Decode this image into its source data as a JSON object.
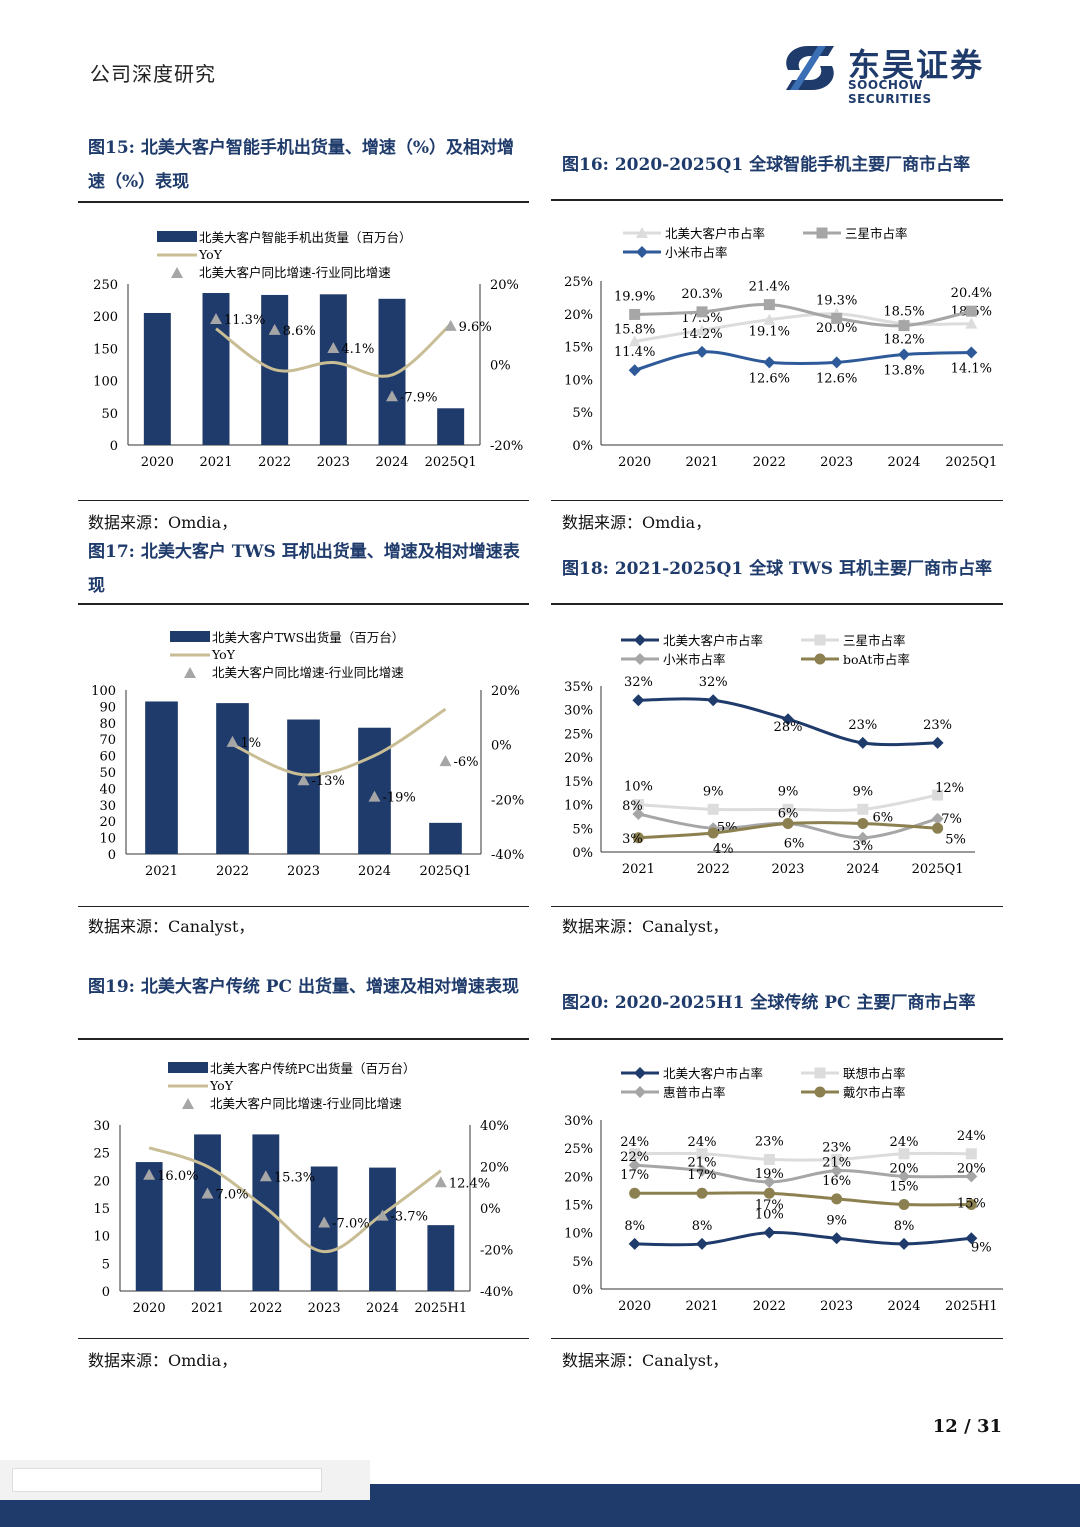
{
  "header": {
    "title": "公司深度研究",
    "logo_cn": "东吴证券",
    "logo_en": "SOOCHOW SECURITIES"
  },
  "page_number": "12  /  31",
  "figures": [
    {
      "title": "图15:  北美大客户智能手机出货量、增速（%）及相对增速（%）表现",
      "source": "数据来源：Omdia，"
    },
    {
      "title": "图16:  2020-2025Q1 全球智能手机主要厂商市占率",
      "source": "数据来源：Omdia，"
    },
    {
      "title": "图17:  北美大客户 TWS 耳机出货量、增速及相对增速表现",
      "source": "数据来源：Canalyst，"
    },
    {
      "title": "图18:  2021-2025Q1 全球 TWS 耳机主要厂商市占率",
      "source": "数据来源：Canalyst，"
    },
    {
      "title": "图19:  北美大客户传统 PC 出货量、增速及相对增速表现",
      "source": "数据来源：Omdia，"
    },
    {
      "title": "图20:  2020-2025H1 全球传统 PC 主要厂商市占率",
      "source": "数据来源：Canalyst，"
    }
  ],
  "chart_data": [
    {
      "type": "bar",
      "categories": [
        "2020",
        "2021",
        "2022",
        "2023",
        "2024",
        "2025Q1"
      ],
      "series": [
        {
          "name": "北美大客户智能手机出货量（百万台）",
          "kind": "bar",
          "axis": "left",
          "values": [
            205,
            236,
            233,
            234,
            227,
            57
          ]
        },
        {
          "name": "YoY",
          "kind": "line",
          "axis": "right",
          "values": [
            null,
            8.9,
            -1.3,
            0.5,
            -2.6,
            10.0
          ]
        },
        {
          "name": "北美大客户同比增速-行业同比增速",
          "kind": "marker",
          "axis": "right",
          "values": [
            null,
            11.3,
            8.6,
            4.1,
            -7.9,
            9.6
          ]
        }
      ],
      "marker_labels": [
        "",
        "11.3%",
        "8.6%",
        "4.1%",
        "-7.9%",
        "9.6%"
      ],
      "yleft": {
        "min": 0,
        "max": 250,
        "ticks": [
          "0",
          "50",
          "100",
          "150",
          "200",
          "250"
        ]
      },
      "yright": {
        "min": -20,
        "max": 20,
        "ticks": [
          "-20%",
          "0%",
          "20%"
        ]
      }
    },
    {
      "type": "line",
      "categories": [
        "2020",
        "2021",
        "2022",
        "2023",
        "2024",
        "2025Q1"
      ],
      "series": [
        {
          "name": "北美大客户市占率",
          "color": "#dcdcdc",
          "marker": "triangle",
          "values": [
            15.8,
            17.5,
            19.1,
            20.0,
            18.5,
            18.5
          ],
          "labels": [
            "15.8%",
            "17.5%",
            "19.1%",
            "20.0%",
            "18.5%",
            "18.5%"
          ]
        },
        {
          "name": "三星市占率",
          "color": "#a6a6a6",
          "marker": "square",
          "values": [
            19.9,
            20.3,
            21.4,
            19.3,
            18.2,
            20.4
          ],
          "labels": [
            "19.9%",
            "20.3%",
            "21.4%",
            "19.3%",
            "18.2%",
            "20.4%"
          ]
        },
        {
          "name": "小米市占率",
          "color": "#2e5a9a",
          "marker": "diamond",
          "values": [
            11.4,
            14.2,
            12.6,
            12.6,
            13.8,
            14.1
          ],
          "labels": [
            "11.4%",
            "14.2%",
            "12.6%",
            "12.6%",
            "13.8%",
            "14.1%"
          ]
        }
      ],
      "yaxis": {
        "min": 0,
        "max": 25,
        "ticks": [
          "0%",
          "5%",
          "10%",
          "15%",
          "20%",
          "25%"
        ]
      }
    },
    {
      "type": "bar",
      "categories": [
        "2021",
        "2022",
        "2023",
        "2024",
        "2025Q1"
      ],
      "series": [
        {
          "name": "北美大客户TWS出货量（百万台）",
          "kind": "bar",
          "axis": "left",
          "values": [
            93,
            92,
            82,
            77,
            19
          ]
        },
        {
          "name": "YoY",
          "kind": "line",
          "axis": "right",
          "values": [
            null,
            0,
            -11,
            -4,
            13
          ]
        },
        {
          "name": "北美大客户同比增速-行业同比增速",
          "kind": "marker",
          "axis": "right",
          "values": [
            null,
            1,
            -13,
            -19,
            -6
          ]
        }
      ],
      "marker_labels": [
        "",
        "1%",
        "-13%",
        "-19%",
        "-6%"
      ],
      "yleft": {
        "min": 0,
        "max": 100,
        "ticks": [
          "0",
          "10",
          "20",
          "30",
          "40",
          "50",
          "60",
          "70",
          "80",
          "90",
          "100"
        ]
      },
      "yright": {
        "min": -40,
        "max": 20,
        "ticks": [
          "-40%",
          "-20%",
          "0%",
          "20%"
        ]
      }
    },
    {
      "type": "line",
      "categories": [
        "2021",
        "2022",
        "2023",
        "2024",
        "2025Q1"
      ],
      "series": [
        {
          "name": "北美大客户市占率",
          "color": "#1f3b6b",
          "marker": "diamond",
          "values": [
            32,
            32,
            28,
            23,
            23
          ],
          "labels": [
            "32%",
            "32%",
            "28%",
            "23%",
            "23%"
          ]
        },
        {
          "name": "三星市占率",
          "color": "#dcdcdc",
          "marker": "square",
          "values": [
            10,
            9,
            9,
            9,
            12
          ],
          "labels": [
            "10%",
            "9%",
            "9%",
            "9%",
            "12%"
          ]
        },
        {
          "name": "小米市占率",
          "color": "#a6a6a6",
          "marker": "diamond",
          "values": [
            8,
            5,
            6,
            3,
            7
          ],
          "labels": [
            "8%",
            "5%",
            "6%",
            "3%",
            "7%"
          ]
        },
        {
          "name": "boAt市占率",
          "color": "#8c8050",
          "marker": "circle",
          "values": [
            3,
            4,
            6,
            6,
            5
          ],
          "labels": [
            "3%",
            "4%",
            "6%",
            "6%",
            "5%"
          ]
        }
      ],
      "yaxis": {
        "min": 0,
        "max": 35,
        "ticks": [
          "0%",
          "5%",
          "10%",
          "15%",
          "20%",
          "25%",
          "30%",
          "35%"
        ]
      }
    },
    {
      "type": "bar",
      "categories": [
        "2020",
        "2021",
        "2022",
        "2023",
        "2024",
        "2025H1"
      ],
      "series": [
        {
          "name": "北美大客户传统PC出货量（百万台）",
          "kind": "bar",
          "axis": "left",
          "values": [
            23.3,
            28.3,
            28.3,
            22.5,
            22.3,
            11.9
          ]
        },
        {
          "name": "YoY",
          "kind": "line",
          "axis": "right",
          "values": [
            29,
            20,
            0,
            -21,
            -3,
            18
          ]
        },
        {
          "name": "北美大客户同比增速-行业同比增速",
          "kind": "marker",
          "axis": "right",
          "values": [
            16.0,
            7.0,
            15.3,
            -7.0,
            -3.7,
            12.4
          ]
        }
      ],
      "marker_labels": [
        "16.0%",
        "7.0%",
        "15.3%",
        "-7.0%",
        "-3.7%",
        "12.4%"
      ],
      "yleft": {
        "min": 0,
        "max": 30,
        "ticks": [
          "0",
          "5",
          "10",
          "15",
          "20",
          "25",
          "30"
        ]
      },
      "yright": {
        "min": -40,
        "max": 40,
        "ticks": [
          "-40%",
          "-20%",
          "0%",
          "20%",
          "40%"
        ]
      }
    },
    {
      "type": "line",
      "categories": [
        "2020",
        "2021",
        "2022",
        "2023",
        "2024",
        "2025H1"
      ],
      "series": [
        {
          "name": "北美大客户市占率",
          "color": "#1f3b6b",
          "marker": "diamond",
          "values": [
            8,
            8,
            10,
            9,
            8,
            9
          ],
          "labels": [
            "8%",
            "8%",
            "10%",
            "9%",
            "8%",
            "9%"
          ]
        },
        {
          "name": "联想市占率",
          "color": "#dcdcdc",
          "marker": "square",
          "values": [
            24,
            24,
            23,
            23,
            24,
            24
          ],
          "labels": [
            "24%",
            "24%",
            "23%",
            "23%",
            "24%",
            "24%"
          ]
        },
        {
          "name": "惠普市占率",
          "color": "#a6a6a6",
          "marker": "diamond",
          "values": [
            22,
            21,
            19,
            21,
            20,
            20
          ],
          "labels": [
            "22%",
            "21%",
            "19%",
            "21%",
            "20%",
            "20%"
          ]
        },
        {
          "name": "戴尔市占率",
          "color": "#8c8050",
          "marker": "circle",
          "values": [
            17,
            17,
            17,
            16,
            15,
            15
          ],
          "labels": [
            "17%",
            "17%",
            "17%",
            "16%",
            "15%",
            "15%"
          ]
        }
      ],
      "yaxis": {
        "min": 0,
        "max": 30,
        "ticks": [
          "0%",
          "5%",
          "10%",
          "15%",
          "20%",
          "25%",
          "30%"
        ]
      }
    }
  ]
}
